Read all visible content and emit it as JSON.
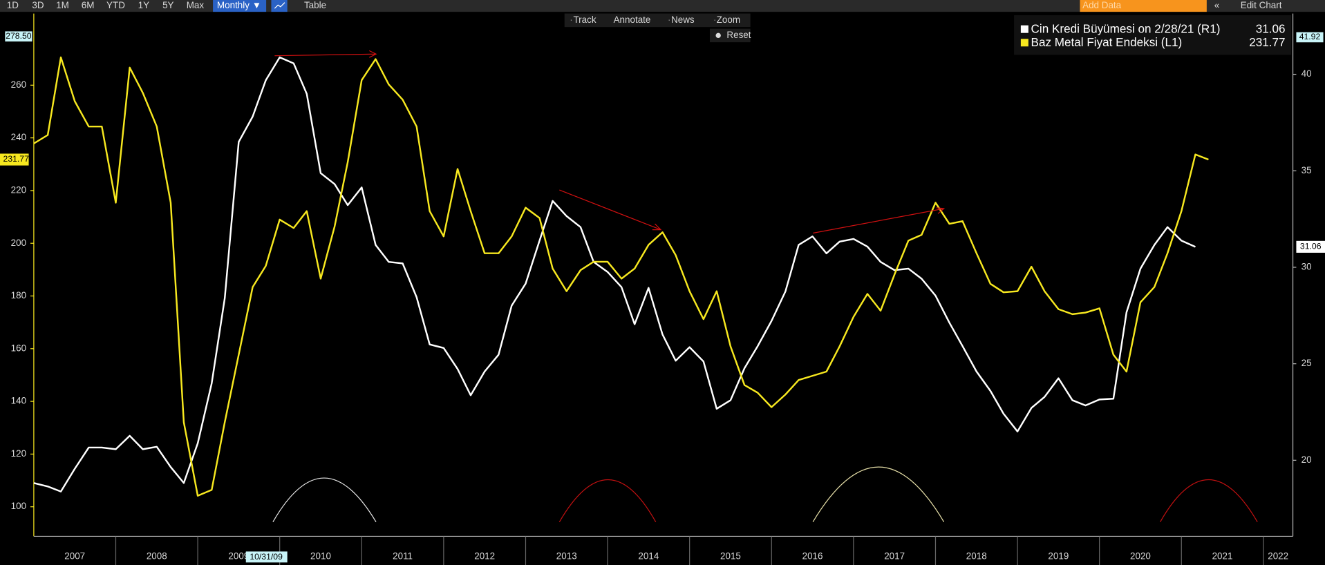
{
  "toolbar": {
    "ranges": [
      "1D",
      "3D",
      "1M",
      "6M",
      "YTD",
      "1Y",
      "5Y",
      "Max"
    ],
    "period": "Monthly ▼",
    "table": "Table",
    "tools": [
      "Track",
      "Annotate",
      "News",
      "Zoom"
    ],
    "reset": "Reset",
    "add_data": "Add Data",
    "edit_chart": "Edit Chart",
    "crosshair_date": "10/31/09"
  },
  "chart_data": {
    "type": "line",
    "x": [
      2007,
      2007.17,
      2007.33,
      2007.5,
      2007.67,
      2007.83,
      2008,
      2008.17,
      2008.33,
      2008.5,
      2008.67,
      2008.83,
      2009,
      2009.17,
      2009.33,
      2009.5,
      2009.67,
      2009.83,
      2010,
      2010.17,
      2010.33,
      2010.5,
      2010.67,
      2010.83,
      2011,
      2011.17,
      2011.33,
      2011.5,
      2011.67,
      2011.83,
      2012,
      2012.17,
      2012.33,
      2012.5,
      2012.67,
      2012.83,
      2013,
      2013.17,
      2013.33,
      2013.5,
      2013.67,
      2013.83,
      2014,
      2014.17,
      2014.33,
      2014.5,
      2014.67,
      2014.83,
      2015,
      2015.17,
      2015.33,
      2015.5,
      2015.67,
      2015.83,
      2016,
      2016.17,
      2016.33,
      2016.5,
      2016.67,
      2016.83,
      2017,
      2017.17,
      2017.33,
      2017.5,
      2017.67,
      2017.83,
      2018,
      2018.17,
      2018.33,
      2018.5,
      2018.67,
      2018.83,
      2019,
      2019.17,
      2019.33,
      2019.5,
      2019.67,
      2019.83,
      2020,
      2020.17,
      2020.33,
      2020.5,
      2020.67,
      2020.83,
      2021,
      2021.17,
      2021.33
    ],
    "series": [
      {
        "name": "Cin Kredi Büyümesi on 2/28/21 (R1)",
        "color": "#ffffff",
        "axis": "y2",
        "values": [
          18.82,
          18.64,
          18.38,
          19.56,
          20.66,
          20.66,
          20.57,
          21.27,
          20.57,
          20.7,
          19.65,
          18.82,
          20.88,
          23.98,
          28.4,
          36.5,
          37.81,
          39.69,
          40.88,
          40.57,
          38.99,
          34.88,
          34.31,
          33.22,
          34.14,
          31.16,
          30.28,
          30.2,
          28.45,
          26,
          25.82,
          24.73,
          23.37,
          24.6,
          25.47,
          28.01,
          29.15,
          31.38,
          33.44,
          32.65,
          32.08,
          30.28,
          29.76,
          28.97,
          27.05,
          28.93,
          26.52,
          25.16,
          25.86,
          25.12,
          22.67,
          23.11,
          24.77,
          25.91,
          27.22,
          28.75,
          31.16,
          31.6,
          30.72,
          31.33,
          31.47,
          31.07,
          30.28,
          29.85,
          29.93,
          29.41,
          28.53,
          27.13,
          25.91,
          24.6,
          23.59,
          22.41,
          21.49,
          22.71,
          23.28,
          24.25,
          23.11,
          22.84,
          23.15,
          23.19,
          27.66,
          29.93,
          31.16,
          32.08,
          31.38,
          31.06,
          null
        ]
      },
      {
        "name": "Baz Metal Fiyat Endeksi (L1)",
        "color": "#f7e81f",
        "axis": "y",
        "values": [
          237.87,
          241.07,
          270.57,
          253.9,
          244.3,
          244.3,
          215.4,
          266.7,
          257.1,
          244.3,
          215.4,
          132.1,
          104.2,
          106.4,
          132.1,
          157.7,
          183.4,
          191.4,
          209,
          205.8,
          212.2,
          186.6,
          206.4,
          230.8,
          261.9,
          269.9,
          260.3,
          254.5,
          244.3,
          212.2,
          202.6,
          228.2,
          212.2,
          196.2,
          196.2,
          202.6,
          213.5,
          209.6,
          190.4,
          181.8,
          189.8,
          193,
          193,
          186.6,
          190.4,
          199.4,
          204.2,
          195.5,
          181.8,
          171.2,
          181.8,
          160.9,
          146.2,
          143.3,
          137.8,
          142.6,
          148.1,
          149.7,
          151.3,
          160.9,
          172.1,
          180.8,
          174.4,
          188.2,
          201,
          203.2,
          215.4,
          207.4,
          208.4,
          196.2,
          184.6,
          181.4,
          181.8,
          191.1,
          181.8,
          175,
          173.1,
          173.7,
          175.3,
          157.7,
          151.3,
          177.6,
          183.4,
          196.2,
          212.2,
          233.7,
          231.77
        ]
      }
    ],
    "xlim": [
      2007,
      2022.36
    ],
    "xticks": [
      2007,
      2008,
      2009,
      2010,
      2011,
      2012,
      2013,
      2014,
      2015,
      2016,
      2017,
      2018,
      2019,
      2020,
      2021,
      2022
    ],
    "ylim": [
      88.8,
      287.2
    ],
    "yticks": [
      100,
      120,
      140,
      160,
      180,
      200,
      220,
      240,
      260
    ],
    "y2lim": [
      16.06,
      43.15
    ],
    "y2ticks": [
      20,
      25,
      30,
      35,
      40
    ],
    "y_high": {
      "value": 278.5,
      "label": "278.50"
    },
    "y2_high": 41.92,
    "legend": "top-right"
  }
}
